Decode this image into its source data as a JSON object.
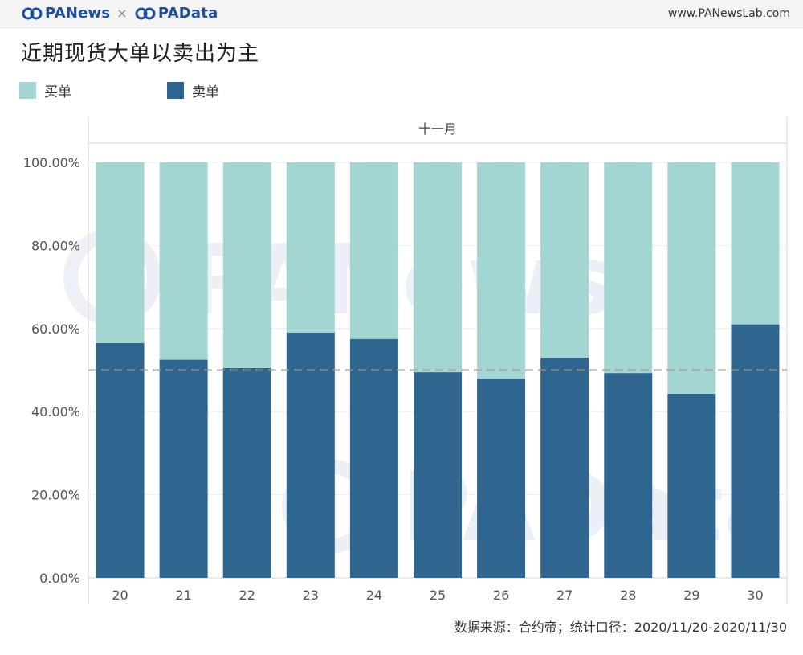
{
  "header": {
    "brand_left": "PANews",
    "brand_times": "×",
    "brand_right": "PAData",
    "site": "www.PANewsLab.com"
  },
  "colors": {
    "buy": "#a3d5d3",
    "sell": "#2f6690",
    "reference_line": "#999999"
  },
  "chart_data": {
    "type": "bar",
    "stacked": true,
    "title": "近期现货大单以卖出为主",
    "group_label": "十一月",
    "categories": [
      "20",
      "21",
      "22",
      "23",
      "24",
      "25",
      "26",
      "27",
      "28",
      "29",
      "30"
    ],
    "series": [
      {
        "name": "卖单",
        "values": [
          56.5,
          52.5,
          50.5,
          59.0,
          57.5,
          49.5,
          48.0,
          53.0,
          49.3,
          44.3,
          61.0
        ]
      },
      {
        "name": "买单",
        "values": [
          43.5,
          47.5,
          49.5,
          41.0,
          42.5,
          50.5,
          52.0,
          47.0,
          50.7,
          55.7,
          39.0
        ]
      }
    ],
    "legend": [
      "买单",
      "卖单"
    ],
    "legend_position": "top-left",
    "yticks": [
      "0.00%",
      "20.00%",
      "40.00%",
      "60.00%",
      "80.00%",
      "100.00%"
    ],
    "ylim": [
      0,
      100
    ],
    "reference_line": 50,
    "grid": true
  },
  "footer": {
    "source": "数据来源：合约帝；统计口径：2020/11/20-2020/11/30"
  }
}
